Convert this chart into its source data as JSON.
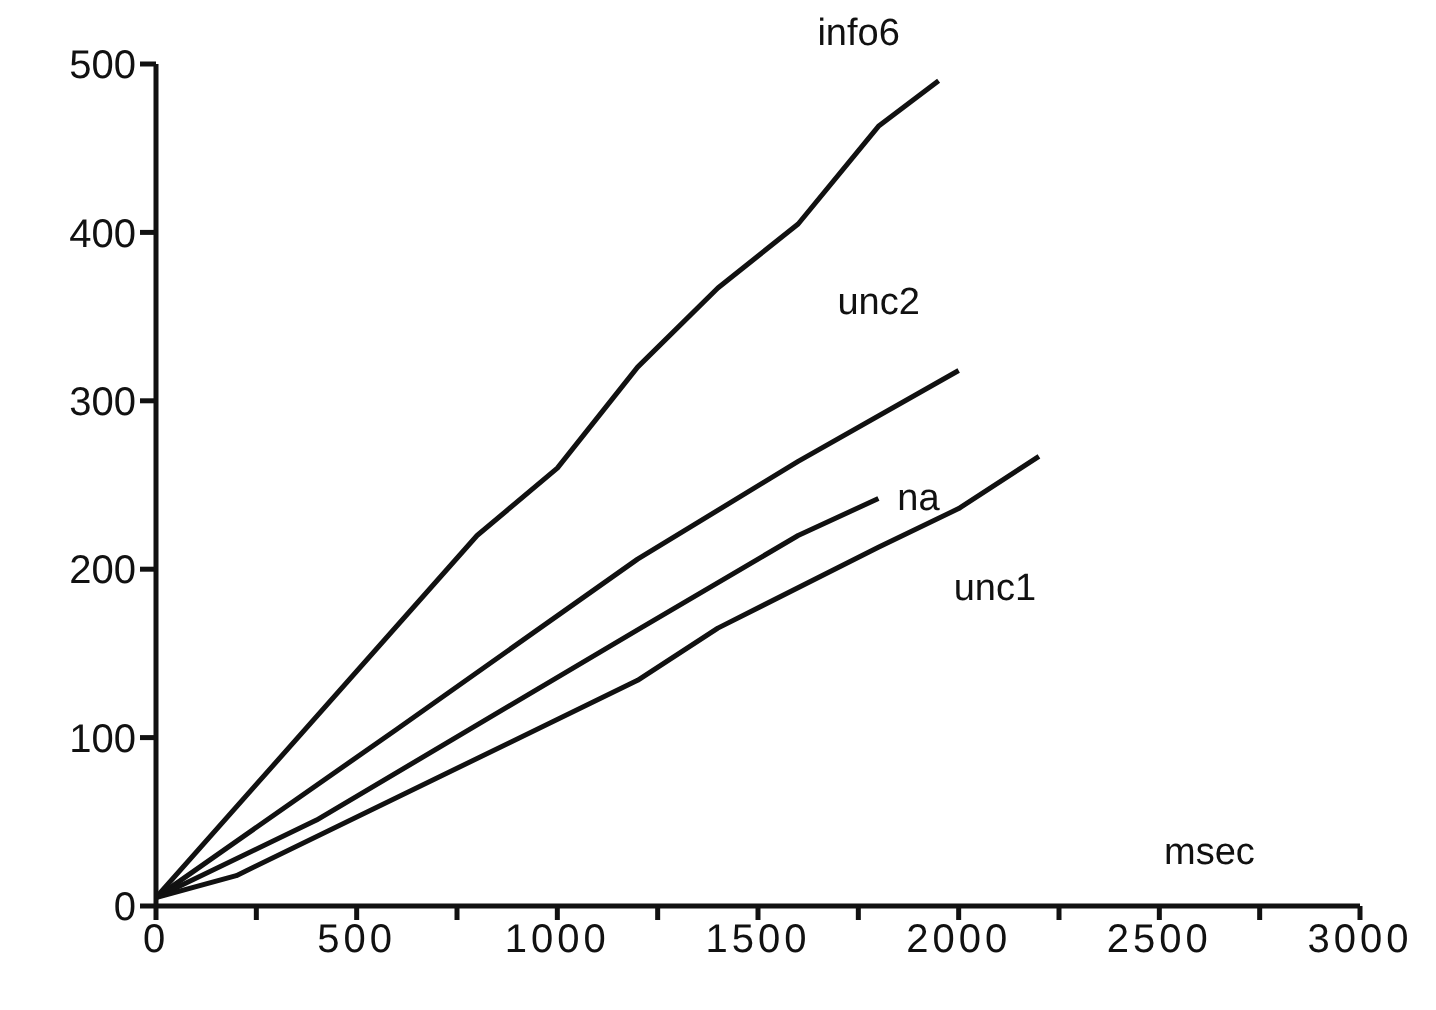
{
  "chart_data": {
    "type": "line",
    "xlabel": "msec",
    "xlim": [
      0,
      3000
    ],
    "ylim": [
      0,
      500
    ],
    "xticks": [
      0,
      {
        "value": 250,
        "label": null
      },
      500,
      {
        "value": 750,
        "label": null
      },
      1000,
      {
        "value": 1250,
        "label": null
      },
      1500,
      {
        "value": 1750,
        "label": null
      },
      2000,
      {
        "value": 2250,
        "label": null
      },
      2500,
      {
        "value": 2750,
        "label": null
      },
      3000
    ],
    "yticks": [
      0,
      100,
      200,
      300,
      400,
      500
    ],
    "grid": false,
    "legend": false,
    "marker": "none",
    "line_style": "solid",
    "series": [
      {
        "name": "info6",
        "color": "#111111",
        "x": [
          0,
          800,
          1000,
          1200,
          1400,
          1600,
          1800,
          1950
        ],
        "values": [
          5,
          220,
          260,
          320,
          367,
          405,
          463,
          490
        ]
      },
      {
        "name": "unc2",
        "color": "#111111",
        "x": [
          0,
          600,
          1200,
          1600,
          2000
        ],
        "values": [
          5,
          105,
          206,
          264,
          318
        ]
      },
      {
        "name": "na",
        "color": "#111111",
        "x": [
          0,
          400,
          1200,
          1600,
          1800
        ],
        "values": [
          5,
          51,
          164,
          220,
          242
        ]
      },
      {
        "name": "unc1",
        "color": "#111111",
        "x": [
          0,
          200,
          1200,
          1400,
          1800,
          2000,
          2200
        ],
        "values": [
          5,
          18,
          134,
          165,
          213,
          236,
          267
        ]
      }
    ]
  }
}
